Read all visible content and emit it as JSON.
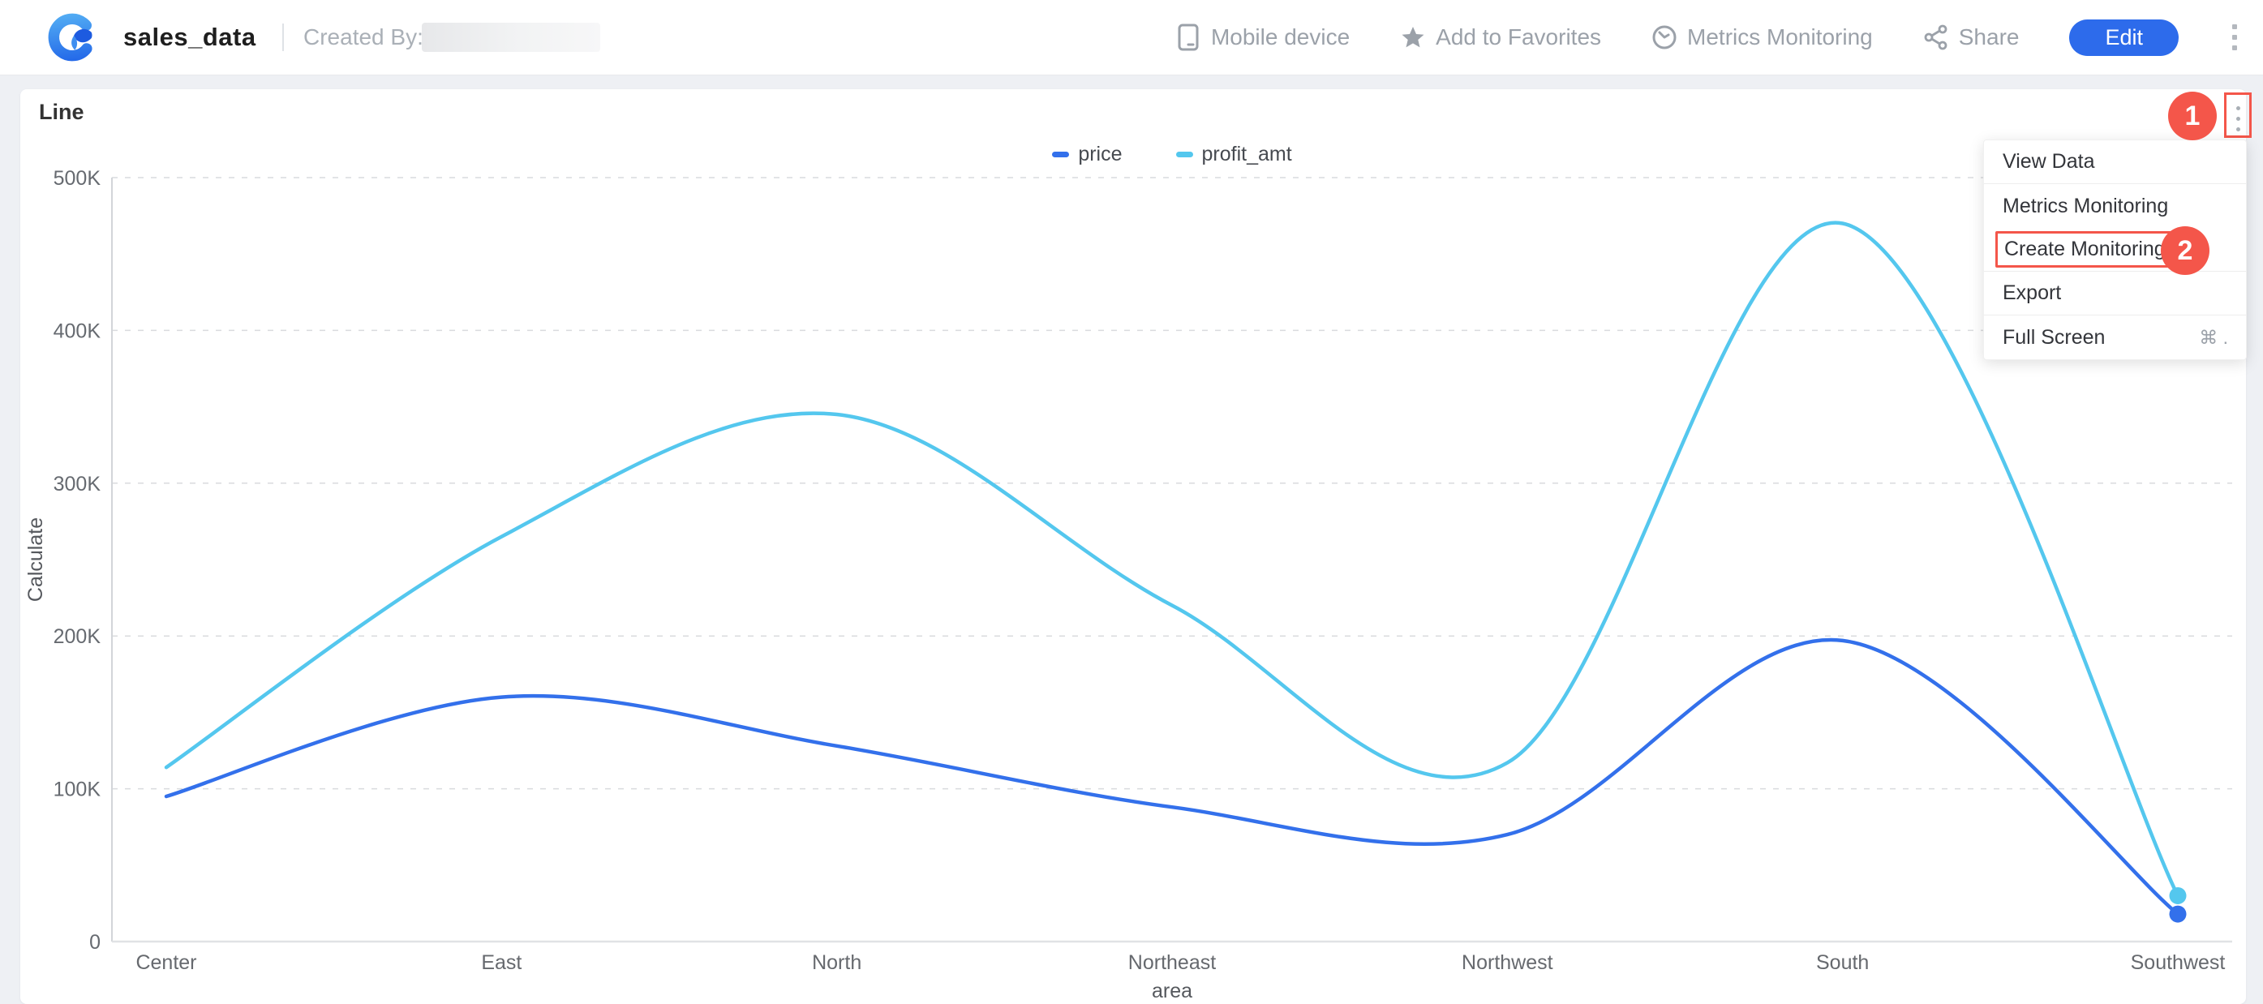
{
  "header": {
    "title": "sales_data",
    "created_by_label": "Created By:",
    "actions": [
      {
        "label": "Mobile device",
        "icon": "mobile-icon"
      },
      {
        "label": "Add to Favorites",
        "icon": "star-icon"
      },
      {
        "label": "Metrics Monitoring",
        "icon": "gauge-icon"
      },
      {
        "label": "Share",
        "icon": "share-icon"
      }
    ],
    "edit_button": "Edit"
  },
  "card": {
    "title": "Line"
  },
  "menu": {
    "items": [
      {
        "label": "View Data",
        "divider_after": true
      },
      {
        "label": "Metrics Monitoring"
      },
      {
        "label": "Create Monitoring",
        "highlighted": true,
        "divider_after": true
      },
      {
        "label": "Export",
        "divider_after": true
      },
      {
        "label": "Full Screen",
        "shortcut": "⌘ ."
      }
    ]
  },
  "annotations": {
    "step1": "1",
    "step2": "2",
    "accent_color": "#f4564a"
  },
  "chart_data": {
    "type": "line",
    "title": "Line",
    "categories": [
      "Center",
      "East",
      "North",
      "Northeast",
      "Northwest",
      "South",
      "Southwest"
    ],
    "series": [
      {
        "name": "price",
        "color": "#3370eb",
        "values": [
          95000,
          160000,
          128000,
          88000,
          70000,
          197000,
          18000
        ]
      },
      {
        "name": "profit_amt",
        "color": "#54c7ee",
        "values": [
          114000,
          265000,
          345000,
          220000,
          117000,
          470000,
          30000
        ]
      }
    ],
    "xlabel": "area",
    "ylabel": "Calculate",
    "ylim": [
      0,
      500000
    ],
    "ytick_step": 100000,
    "yticks": [
      "0",
      "100K",
      "200K",
      "300K",
      "400K",
      "500K"
    ],
    "grid": "horizontal-dashed",
    "legend_position": "top",
    "smooth": true,
    "end_point_markers": true
  }
}
